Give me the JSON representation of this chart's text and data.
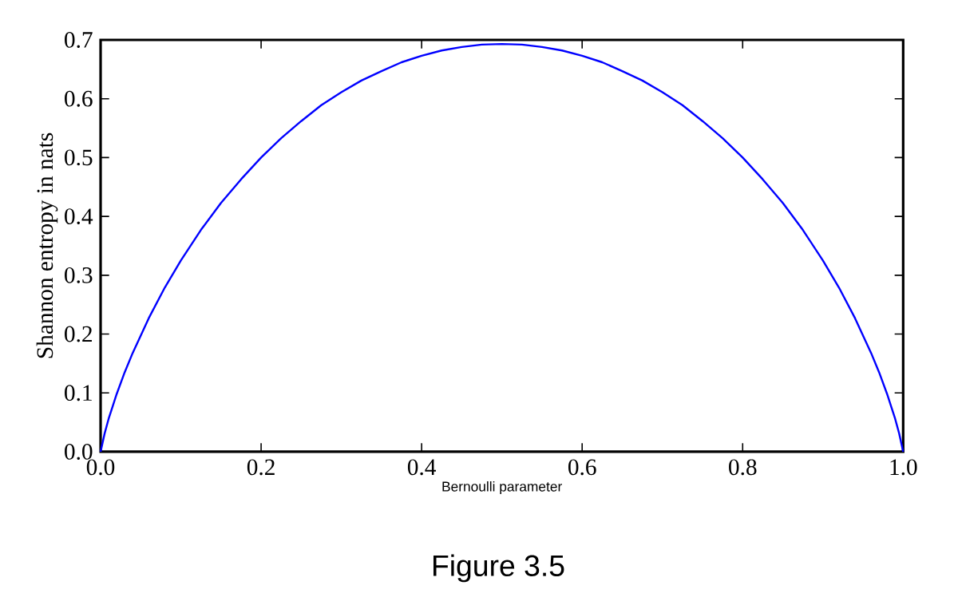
{
  "chart_data": {
    "type": "line",
    "xlabel": "Bernoulli parameter",
    "ylabel": "Shannon entropy in nats",
    "annotations": [
      "Figure 3.5"
    ],
    "x": [
      0,
      0.005,
      0.01,
      0.02,
      0.03,
      0.04,
      0.06,
      0.08,
      0.1,
      0.125,
      0.15,
      0.175,
      0.2,
      0.225,
      0.25,
      0.275,
      0.3,
      0.325,
      0.35,
      0.375,
      0.4,
      0.425,
      0.45,
      0.475,
      0.5,
      0.525,
      0.55,
      0.575,
      0.6,
      0.625,
      0.65,
      0.675,
      0.7,
      0.725,
      0.75,
      0.775,
      0.8,
      0.825,
      0.85,
      0.875,
      0.9,
      0.92,
      0.94,
      0.96,
      0.97,
      0.98,
      0.99,
      0.995,
      1.0
    ],
    "series": [
      {
        "color": "#0000ff",
        "values": [
          0,
          0.031,
          0.056,
          0.098,
          0.135,
          0.168,
          0.227,
          0.279,
          0.325,
          0.377,
          0.423,
          0.463,
          0.5,
          0.533,
          0.562,
          0.589,
          0.611,
          0.631,
          0.647,
          0.662,
          0.673,
          0.682,
          0.688,
          0.692,
          0.693,
          0.692,
          0.688,
          0.682,
          0.673,
          0.662,
          0.647,
          0.631,
          0.611,
          0.589,
          0.562,
          0.533,
          0.5,
          0.463,
          0.423,
          0.377,
          0.325,
          0.279,
          0.227,
          0.168,
          0.135,
          0.098,
          0.056,
          0.031,
          0
        ]
      }
    ],
    "xlim": [
      0,
      1
    ],
    "ylim": [
      0,
      0.7
    ],
    "xticks": [
      {
        "value": 0,
        "label": "0.0"
      },
      0.2,
      0.4,
      0.6,
      0.8,
      {
        "value": 1,
        "label": "1.0"
      }
    ],
    "yticks": [
      {
        "value": 0,
        "label": "0.0"
      },
      0.1,
      0.2,
      0.3,
      0.4,
      0.5,
      0.6,
      0.7
    ]
  }
}
